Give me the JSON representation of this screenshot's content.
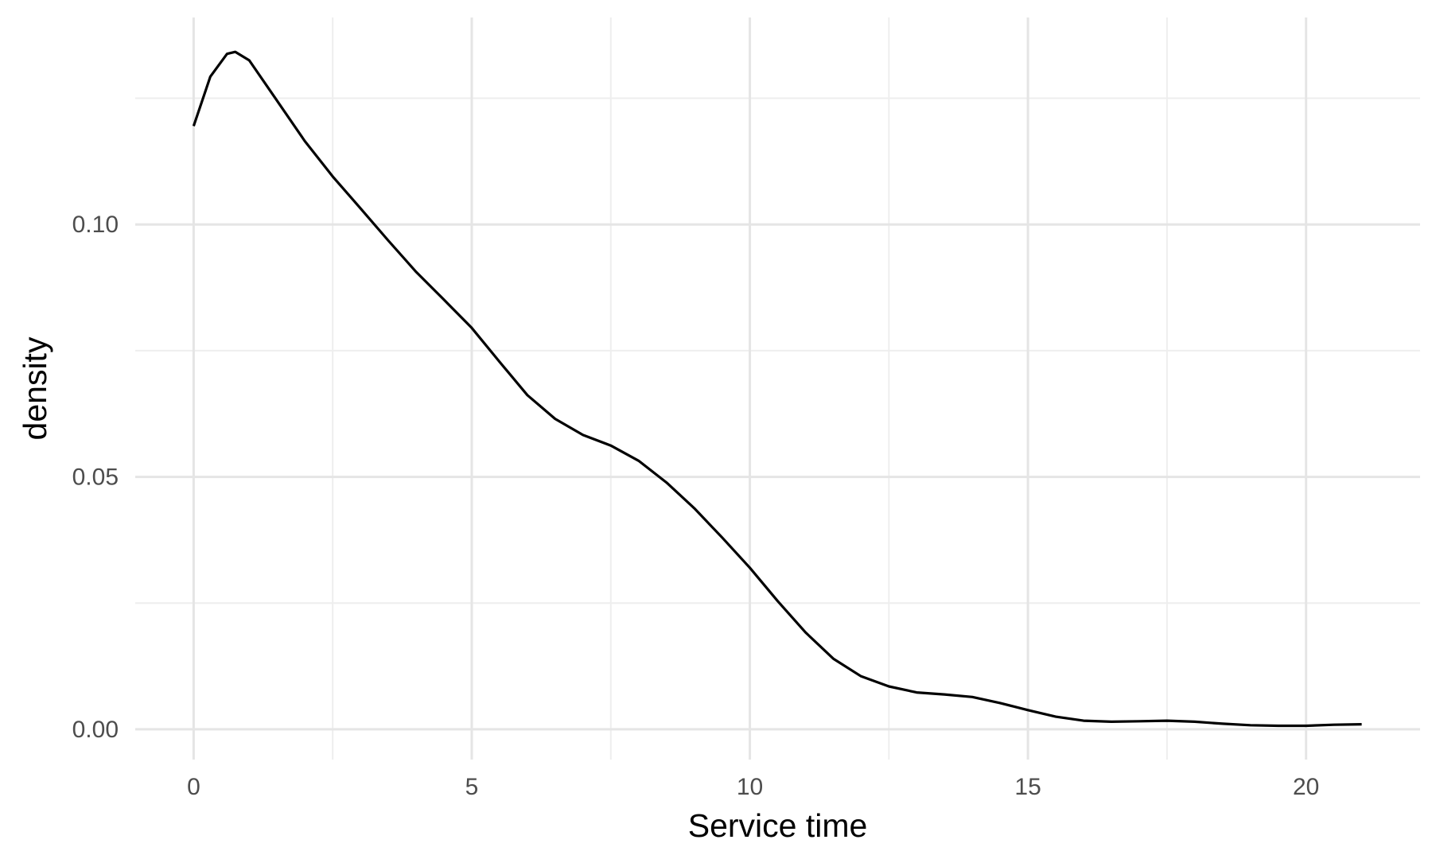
{
  "chart_data": {
    "type": "line",
    "title": "",
    "xlabel": "Service time",
    "ylabel": "density",
    "xlim": [
      -1.05,
      22.05
    ],
    "ylim": [
      -0.006,
      0.141
    ],
    "x_ticks": [
      0,
      5,
      10,
      15,
      20
    ],
    "x_tick_labels": [
      "0",
      "5",
      "10",
      "15",
      "20"
    ],
    "y_ticks": [
      0.0,
      0.05,
      0.1
    ],
    "y_tick_labels": [
      "0.00",
      "0.05",
      "0.10"
    ],
    "grid": true,
    "legend": "none",
    "series": [
      {
        "color": "#000000",
        "x": [
          0,
          0.3,
          0.6,
          0.75,
          1.0,
          1.5,
          2.0,
          2.5,
          3.0,
          3.5,
          4.0,
          4.5,
          5.0,
          5.5,
          6.0,
          6.5,
          7.0,
          7.5,
          8.0,
          8.5,
          9.0,
          9.5,
          10.0,
          10.5,
          11.0,
          11.5,
          12.0,
          12.5,
          13.0,
          13.5,
          14.0,
          14.5,
          15.0,
          15.5,
          16.0,
          16.5,
          17.0,
          17.5,
          18.0,
          18.5,
          19.0,
          19.5,
          20.0,
          20.5,
          21.0
        ],
        "y": [
          0.1195,
          0.1293,
          0.1338,
          0.1342,
          0.1325,
          0.1245,
          0.1165,
          0.1095,
          0.1032,
          0.0968,
          0.0906,
          0.0851,
          0.0795,
          0.0728,
          0.0662,
          0.0615,
          0.0583,
          0.0562,
          0.0532,
          0.0489,
          0.0438,
          0.038,
          0.032,
          0.0254,
          0.0192,
          0.014,
          0.0105,
          0.0085,
          0.0073,
          0.0069,
          0.0064,
          0.0052,
          0.0038,
          0.0025,
          0.0017,
          0.0015,
          0.0016,
          0.0017,
          0.0015,
          0.0011,
          0.0008,
          0.0007,
          0.0007,
          0.0009,
          0.001
        ]
      }
    ]
  }
}
